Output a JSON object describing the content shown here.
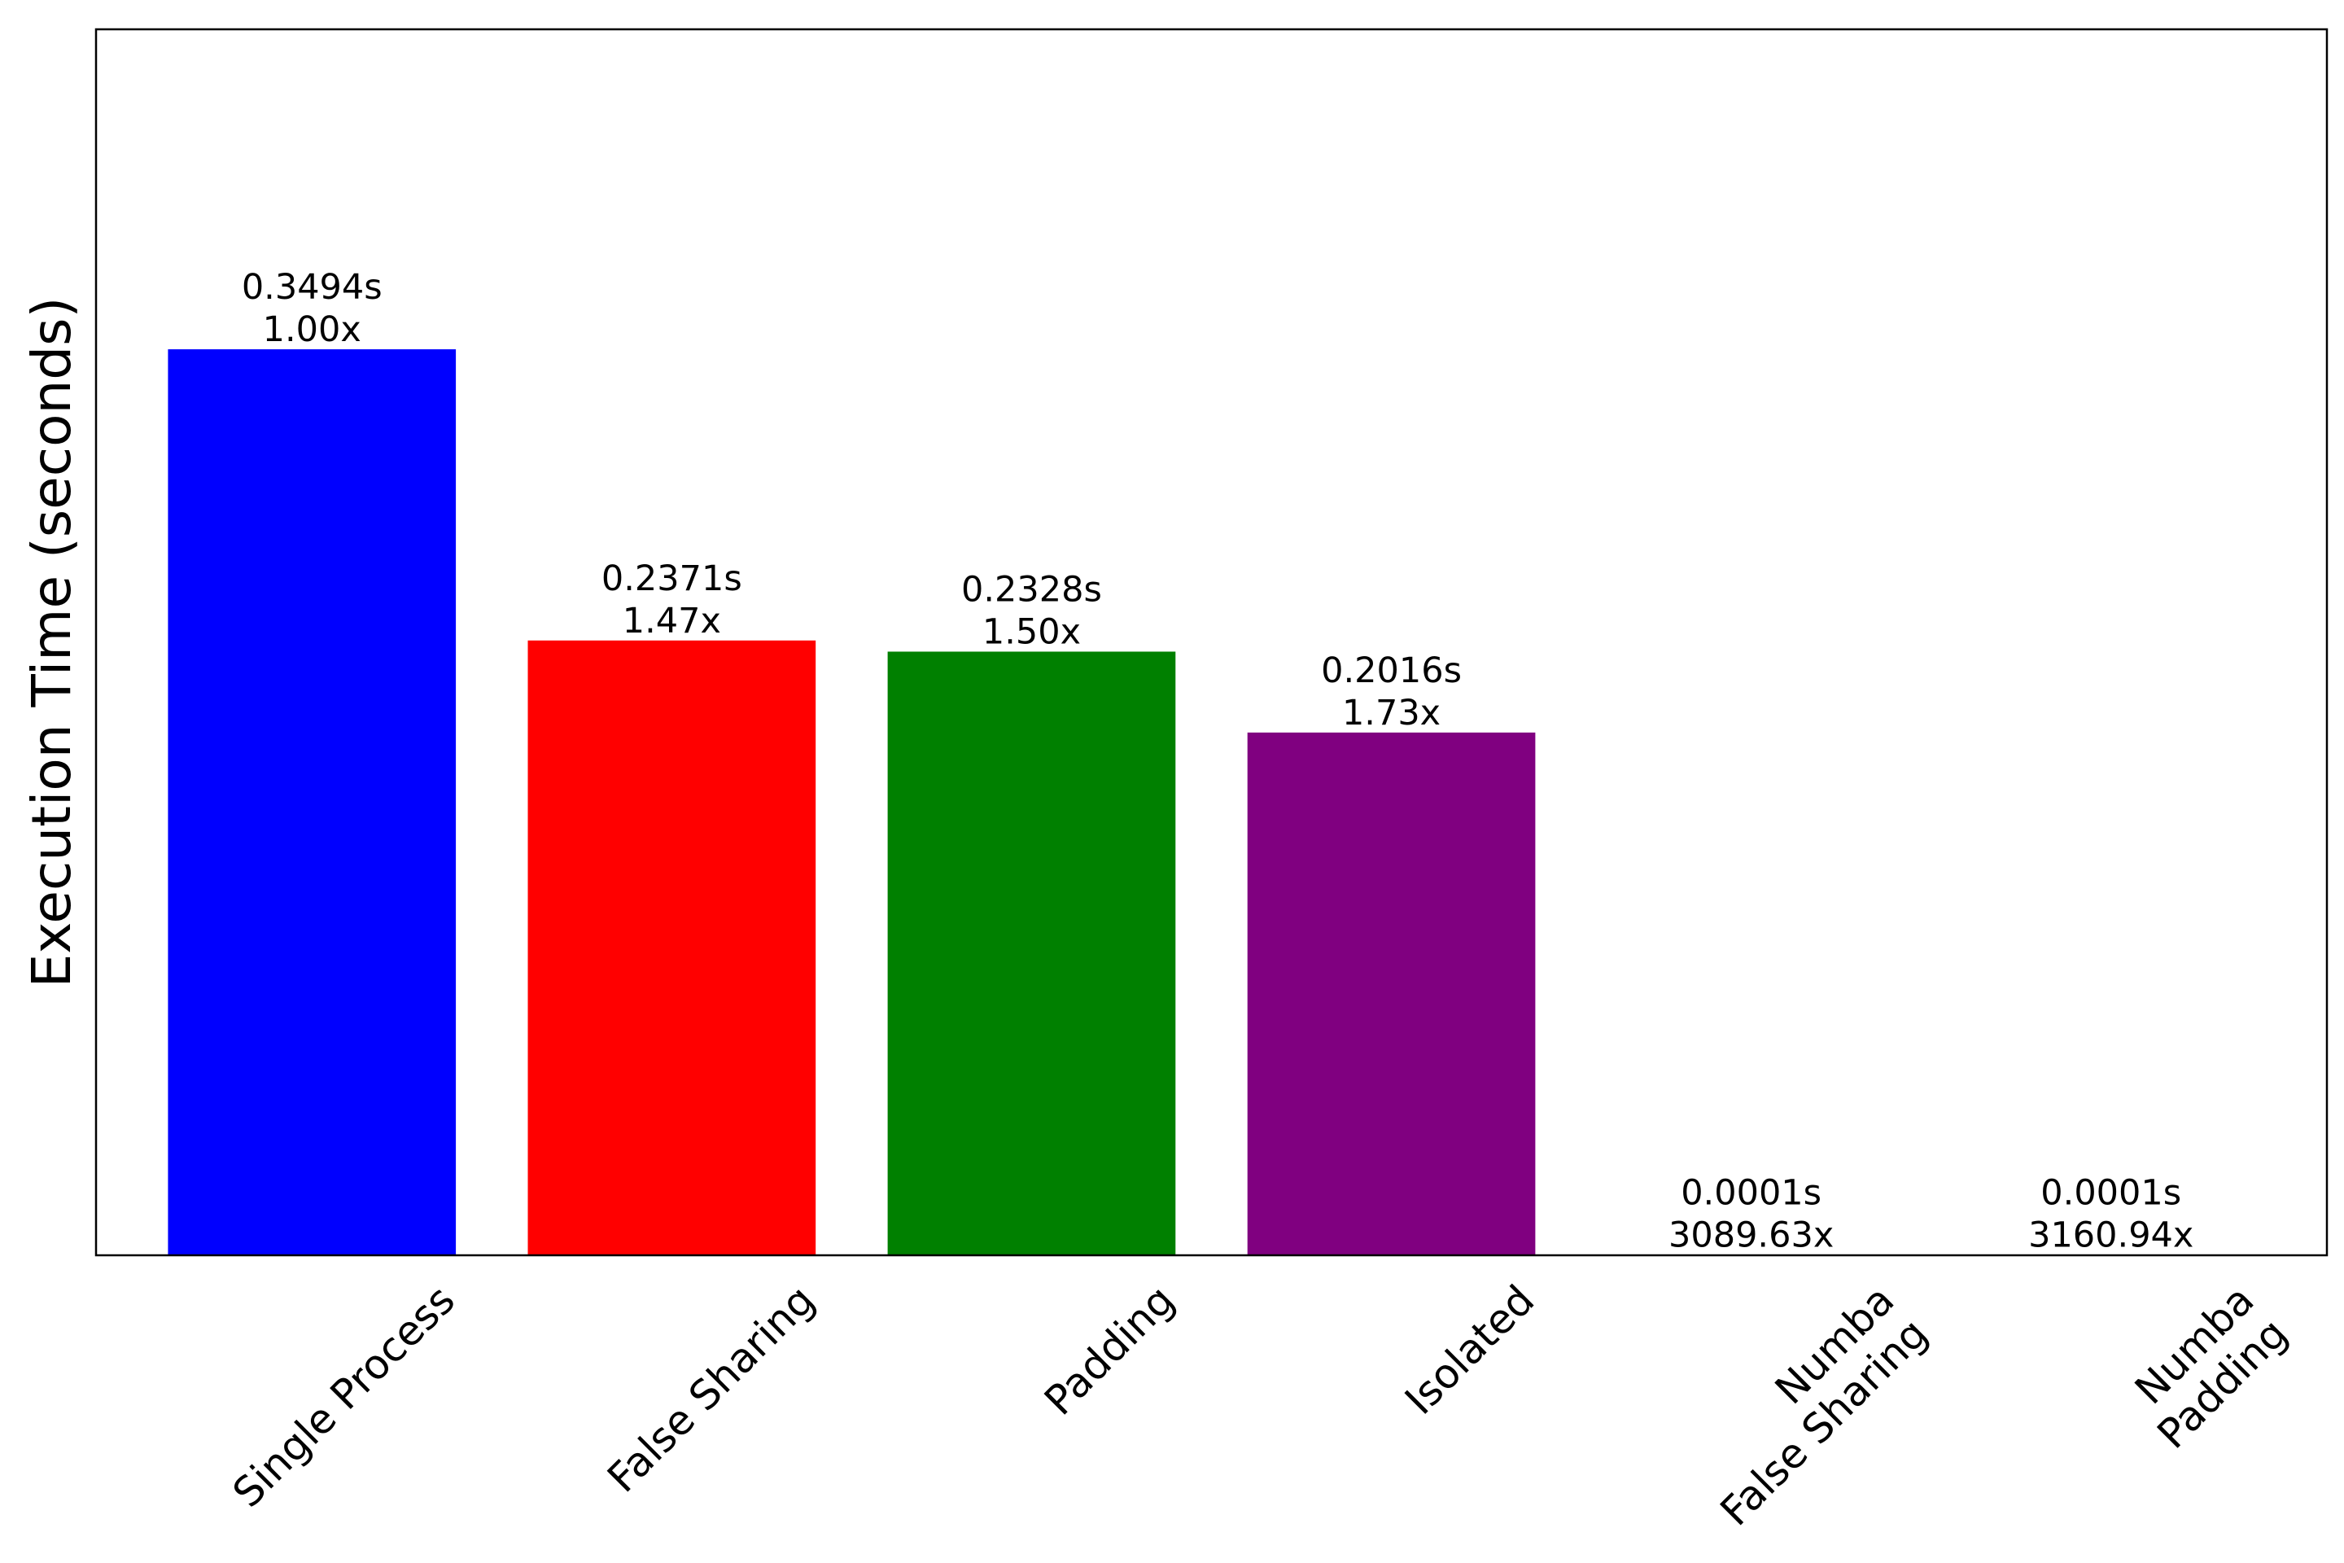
{
  "chart_data": {
    "type": "bar",
    "title": "",
    "xlabel": "",
    "ylabel": "Execution Time (seconds)",
    "ylim": [
      0,
      0.4728
    ],
    "grid": false,
    "y_ticks_visible": false,
    "categories": [
      "Single Process",
      "False Sharing",
      "Padding",
      "Isolated",
      "Numba\nFalse Sharing",
      "Numba\nPadding"
    ],
    "values": [
      0.3494,
      0.2371,
      0.2328,
      0.2016,
      0.0001,
      0.0001
    ],
    "colors": [
      "#0000ff",
      "#ff0000",
      "#008000",
      "#800080",
      "#000000",
      "#000000"
    ],
    "data_labels": [
      {
        "time": "0.3494s",
        "speedup": "1.00x"
      },
      {
        "time": "0.2371s",
        "speedup": "1.47x"
      },
      {
        "time": "0.2328s",
        "speedup": "1.50x"
      },
      {
        "time": "0.2016s",
        "speedup": "1.73x"
      },
      {
        "time": "0.0001s",
        "speedup": "3089.63x"
      },
      {
        "time": "0.0001s",
        "speedup": "3160.94x"
      }
    ]
  }
}
